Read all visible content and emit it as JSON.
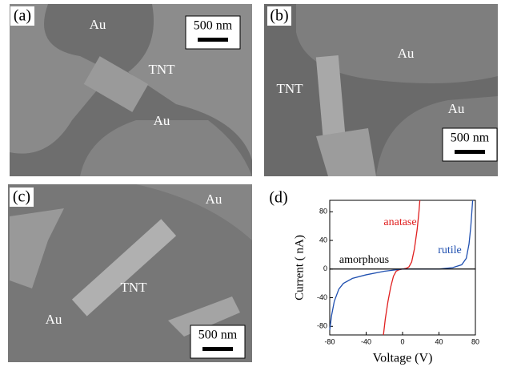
{
  "panels": [
    {
      "label": "(a)",
      "texts": [
        "Au",
        "TNT",
        "Au"
      ],
      "scale_bar": "500 nm"
    },
    {
      "label": "(b)",
      "texts": [
        "Au",
        "TNT",
        "Au"
      ],
      "scale_bar": "500 nm"
    },
    {
      "label": "(c)",
      "texts": [
        "Au",
        "TNT",
        "Au"
      ],
      "scale_bar": "500 nm"
    }
  ],
  "chart_data": {
    "type": "line",
    "label": "(d)",
    "x_label": "Voltage (V)",
    "y_label": "Current ( nA)",
    "xlim": [
      -80,
      80
    ],
    "ylim": [
      -92,
      96
    ],
    "xticks": [
      -80,
      -40,
      0,
      40,
      80
    ],
    "yticks": [
      -80,
      -40,
      0,
      40,
      80
    ],
    "series": [
      {
        "name": "anatase",
        "color": "#e02020",
        "x": [
          -21,
          -19,
          -16,
          -13,
          -10,
          -7,
          -4,
          0,
          4,
          7,
          10,
          13,
          16,
          18,
          19
        ],
        "values": [
          -92,
          -70,
          -45,
          -25,
          -10,
          -3,
          -1,
          0,
          1,
          3,
          10,
          28,
          55,
          80,
          96
        ]
      },
      {
        "name": "rutile",
        "color": "#2050b0",
        "x": [
          -80,
          -78,
          -75,
          -70,
          -65,
          -55,
          -40,
          -20,
          0,
          20,
          40,
          55,
          65,
          70,
          73,
          75,
          77
        ],
        "values": [
          -85,
          -65,
          -45,
          -28,
          -20,
          -13,
          -8,
          -3,
          0,
          0,
          0,
          2,
          6,
          15,
          35,
          60,
          96
        ]
      },
      {
        "name": "amorphous",
        "color": "#000000",
        "x": [
          -80,
          -40,
          0,
          40,
          80
        ],
        "values": [
          0,
          0,
          0,
          0,
          0
        ]
      }
    ]
  }
}
